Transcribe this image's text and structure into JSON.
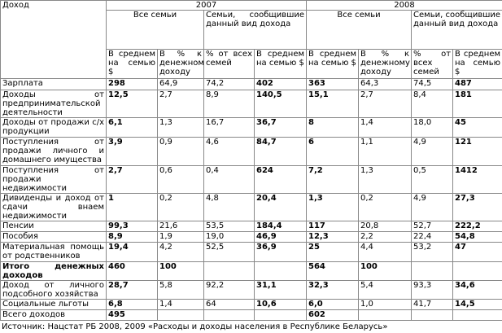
{
  "table": {
    "corner": "Доход",
    "years": [
      "2007",
      "2008"
    ],
    "groups": [
      "Все семьи",
      "Семьи, сообщившие данный вид дохода"
    ],
    "subheaders": [
      "В среднем на семью $",
      "В % к денежному доходу",
      "% от всех семей",
      "В среднем на семью $"
    ],
    "rows": [
      {
        "label": "Зарплата",
        "values": [
          "298",
          "64,9",
          "74,2",
          "402",
          "363",
          "64,3",
          "74,5",
          "487"
        ]
      },
      {
        "label": "Доходы от предпринимательской деятельности",
        "values": [
          "12,5",
          "2,7",
          "8,9",
          "140,5",
          "15,1",
          "2,7",
          "8,4",
          "181"
        ]
      },
      {
        "label": "Доходы от продажи с/х продукции",
        "values": [
          "6,1",
          "1,3",
          "16,7",
          "36,7",
          "8",
          "1,4",
          "18,0",
          "45"
        ]
      },
      {
        "label": "Поступления от продажи личного и домашнего имущества",
        "values": [
          "3,9",
          "0,9",
          "4,6",
          "84,7",
          "6",
          "1,1",
          "4,9",
          "121"
        ]
      },
      {
        "label": "Поступления от продажи недвижимости",
        "values": [
          "2,7",
          "0,6",
          "0,4",
          "624",
          "7,2",
          "1,3",
          "0,5",
          "1412"
        ]
      },
      {
        "label": "Дивиденды и доход от сдачи внаем недвижимости",
        "values": [
          "1",
          "0,2",
          "4,8",
          "20,4",
          "1,3",
          "0,2",
          "4,9",
          "27,3"
        ]
      },
      {
        "label": "Пенсии",
        "values": [
          "99,3",
          "21,6",
          "53,5",
          "184,4",
          "117",
          "20,8",
          "52,7",
          "222,2"
        ]
      },
      {
        "label": "Пособия",
        "values": [
          "8,9",
          "1,9",
          "19,0",
          "46,9",
          "12,3",
          "2,2",
          "22,4",
          "54,8"
        ]
      },
      {
        "label": "Материальная помощь от родственников",
        "values": [
          "19,4",
          "4,2",
          "52,5",
          "36,9",
          "25",
          "4,4",
          "53,2",
          "47"
        ]
      },
      {
        "label": "Итого денежных доходов",
        "values": [
          "460",
          "100",
          null,
          null,
          "564",
          "100",
          null,
          null
        ]
      },
      {
        "label": "Доход от личного подсобного хозяйства",
        "values": [
          "28,7",
          "5,8",
          "92,2",
          "31,1",
          "32,3",
          "5,4",
          "93,3",
          "34,6"
        ]
      },
      {
        "label": "Социальные льготы",
        "values": [
          "6,8",
          "1,4",
          "64",
          "10,6",
          "6,0",
          "1,0",
          "41,7",
          "14,5"
        ]
      },
      {
        "label": "Всего доходов",
        "values": [
          "495",
          null,
          null,
          null,
          "602",
          null,
          null,
          null
        ]
      }
    ],
    "source": "Источник: Нацстат РБ 2008, 2009 «Расходы и доходы населения в Республике Беларусь»"
  }
}
